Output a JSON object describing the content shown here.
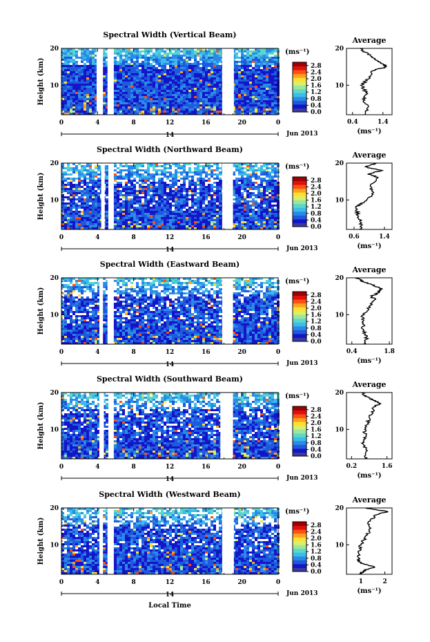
{
  "figure": {
    "bottom_xlabel": "Local Time",
    "month_label": "Jun 2013",
    "day_label": "14",
    "avg_title": "Average",
    "unit_label": "(ms⁻¹)",
    "ylabel": "Height (km)"
  },
  "colors": {
    "colormap": [
      "#3a3aa0",
      "#1414c8",
      "#1e5adc",
      "#2a8ae8",
      "#3cbce8",
      "#5cd8c8",
      "#9ce6a0",
      "#d8f06c",
      "#ffe030",
      "#ffa020",
      "#ff5010",
      "#e01010",
      "#a00000"
    ],
    "profile_line": "#000000"
  },
  "chart_data": [
    {
      "type": "heatmap",
      "title": "Spectral Width (Vertical Beam)",
      "xlabel": "",
      "ylabel": "Height (km)",
      "x_ticks": [
        "0",
        "4",
        "8",
        "12",
        "16",
        "20",
        "0"
      ],
      "y_ticks": [
        "20",
        "10"
      ],
      "xlim": [
        0,
        24
      ],
      "ylim": [
        2,
        20
      ],
      "colorbar": {
        "label": "(ms⁻¹)",
        "ticks": [
          "2.8",
          "2.4",
          "2.0",
          "1.6",
          "1.2",
          "0.8",
          "0.4",
          "0.0"
        ],
        "range": [
          0,
          3
        ]
      },
      "data_gaps_hours": [
        [
          3.9,
          4.6
        ],
        [
          5.1,
          5.8
        ],
        [
          17.8,
          19.1
        ]
      ],
      "average_profile": {
        "title": "Average",
        "xlabel": "(ms⁻¹)",
        "x_ticks": [
          "0.4",
          "1.4"
        ],
        "xlim": [
          0.2,
          1.7
        ],
        "heights_km": [
          2,
          4,
          6,
          8,
          10,
          12,
          14,
          15,
          16,
          17,
          18,
          19,
          20
        ],
        "values": [
          0.8,
          0.9,
          0.75,
          0.85,
          0.7,
          0.95,
          1.05,
          1.55,
          1.3,
          1.15,
          1.0,
          0.8,
          0.65
        ]
      }
    },
    {
      "type": "heatmap",
      "title": "Spectral Width (Northward Beam)",
      "xlabel": "",
      "ylabel": "Height (km)",
      "x_ticks": [
        "0",
        "4",
        "8",
        "12",
        "16",
        "20",
        "0"
      ],
      "y_ticks": [
        "20",
        "10"
      ],
      "xlim": [
        0,
        24
      ],
      "ylim": [
        2,
        20
      ],
      "colorbar": {
        "label": "(ms⁻¹)",
        "ticks": [
          "2.8",
          "2.4",
          "2.0",
          "1.6",
          "1.2",
          "0.8",
          "0.4",
          "0.0"
        ],
        "range": [
          0,
          3
        ]
      },
      "data_gaps_hours": [
        [
          4.4,
          4.8
        ],
        [
          5.2,
          5.8
        ],
        [
          17.8,
          19.0
        ]
      ],
      "average_profile": {
        "title": "Average",
        "xlabel": "(ms⁻¹)",
        "x_ticks": [
          "0.6",
          "1.4"
        ],
        "xlim": [
          0.4,
          1.6
        ],
        "heights_km": [
          2,
          4,
          6,
          8,
          9,
          10,
          12,
          14,
          16,
          17,
          18,
          19,
          20
        ],
        "values": [
          0.75,
          0.8,
          0.7,
          0.65,
          0.8,
          0.95,
          1.1,
          1.0,
          1.25,
          1.0,
          1.3,
          0.9,
          1.2
        ]
      }
    },
    {
      "type": "heatmap",
      "title": "Spectral Width (Eastward Beam)",
      "xlabel": "",
      "ylabel": "Height (km)",
      "x_ticks": [
        "0",
        "4",
        "8",
        "12",
        "16",
        "20",
        "0"
      ],
      "y_ticks": [
        "20",
        "10"
      ],
      "xlim": [
        0,
        24
      ],
      "ylim": [
        2,
        20
      ],
      "colorbar": {
        "label": "(ms⁻¹)",
        "ticks": [
          "2.8",
          "2.4",
          "2.0",
          "1.6",
          "1.2",
          "0.8",
          "0.4",
          "0.0"
        ],
        "range": [
          0,
          3
        ]
      },
      "data_gaps_hours": [
        [
          4.2,
          4.6
        ],
        [
          5.1,
          5.8
        ],
        [
          17.8,
          19.0
        ]
      ],
      "average_profile": {
        "title": "Average",
        "xlabel": "(ms⁻¹)",
        "x_ticks": [
          "0.4",
          "1.8"
        ],
        "xlim": [
          0.2,
          1.9
        ],
        "heights_km": [
          2,
          4,
          6,
          8,
          10,
          12,
          14,
          15,
          16,
          17,
          18,
          19,
          20
        ],
        "values": [
          0.9,
          0.95,
          0.8,
          0.85,
          0.8,
          1.05,
          1.25,
          1.15,
          1.4,
          1.5,
          1.2,
          0.8,
          0.6
        ]
      }
    },
    {
      "type": "heatmap",
      "title": "Spectral Width (Southward Beam)",
      "xlabel": "",
      "ylabel": "Height (km)",
      "x_ticks": [
        "0",
        "4",
        "8",
        "12",
        "16",
        "20",
        "0"
      ],
      "y_ticks": [
        "20",
        "10"
      ],
      "xlim": [
        0,
        24
      ],
      "ylim": [
        2,
        20
      ],
      "colorbar": {
        "label": "(ms⁻¹)",
        "ticks": [
          "2.8",
          "2.4",
          "2.0",
          "1.6",
          "1.2",
          "0.8",
          "0.4",
          "0.0"
        ],
        "range": [
          0,
          3
        ]
      },
      "data_gaps_hours": [
        [
          4.2,
          4.7
        ],
        [
          5.2,
          5.8
        ],
        [
          17.6,
          19.0
        ]
      ],
      "average_profile": {
        "title": "Average",
        "xlabel": "(ms⁻¹)",
        "x_ticks": [
          "0.2",
          "1.6"
        ],
        "xlim": [
          0.0,
          1.8
        ],
        "heights_km": [
          2,
          4,
          6,
          8,
          10,
          12,
          14,
          16,
          17,
          18,
          19,
          20
        ],
        "values": [
          0.75,
          0.8,
          0.65,
          0.75,
          0.7,
          0.85,
          0.95,
          1.1,
          1.3,
          1.05,
          0.75,
          0.6
        ]
      }
    },
    {
      "type": "heatmap",
      "title": "Spectral Width (Westward Beam)",
      "xlabel": "Local Time",
      "ylabel": "Height (km)",
      "x_ticks": [
        "0",
        "4",
        "8",
        "12",
        "16",
        "20",
        "0"
      ],
      "y_ticks": [
        "20",
        "10"
      ],
      "xlim": [
        0,
        24
      ],
      "ylim": [
        2,
        20
      ],
      "colorbar": {
        "label": "(ms⁻¹)",
        "ticks": [
          "2.8",
          "2.4",
          "2.0",
          "1.6",
          "1.2",
          "0.8",
          "0.4",
          "0.0"
        ],
        "range": [
          0,
          3
        ]
      },
      "data_gaps_hours": [
        [
          4.2,
          4.6
        ],
        [
          5.1,
          5.8
        ],
        [
          17.8,
          19.1
        ]
      ],
      "average_profile": {
        "title": "Average",
        "xlabel": "(ms⁻¹)",
        "x_ticks": [
          "1",
          "2"
        ],
        "xlim": [
          0.4,
          2.3
        ],
        "heights_km": [
          2,
          3,
          4,
          5,
          6,
          8,
          10,
          12,
          14,
          16,
          18,
          19,
          20
        ],
        "values": [
          1.0,
          1.1,
          1.6,
          1.0,
          0.9,
          0.95,
          1.0,
          1.2,
          1.4,
          1.3,
          1.6,
          2.1,
          1.2
        ]
      }
    }
  ]
}
